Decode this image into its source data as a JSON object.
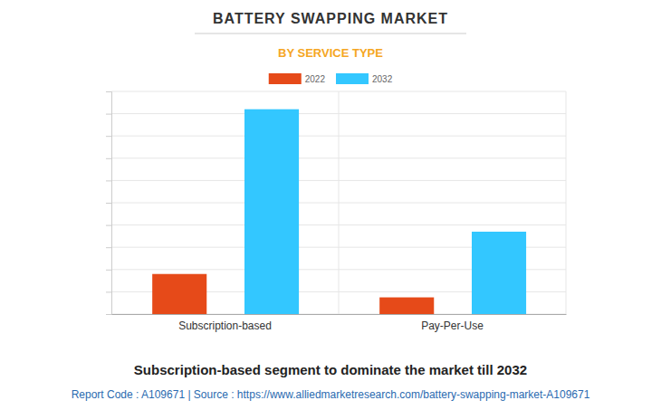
{
  "chart_data": {
    "type": "bar",
    "title": "BATTERY SWAPPING MARKET",
    "subtitle": "BY SERVICE TYPE",
    "categories": [
      "Subscription-based",
      "Pay-Per-Use"
    ],
    "series": [
      {
        "name": "2022",
        "color": "#e64a19",
        "values": [
          1.8,
          0.75
        ]
      },
      {
        "name": "2032",
        "color": "#33c7ff",
        "values": [
          9.2,
          3.7
        ]
      }
    ],
    "ylim": [
      0,
      10
    ],
    "yticks": [
      0,
      1,
      2,
      3,
      4,
      5,
      6,
      7,
      8,
      9,
      10
    ],
    "grid": true,
    "legend": "top",
    "tick_labels": "x",
    "annotations": [
      "Subscription-based segment to dominate the market till 2032",
      "Report Code : A109671 | Source : https://www.alliedmarketresearch.com/battery-swapping-market-A109671"
    ]
  }
}
